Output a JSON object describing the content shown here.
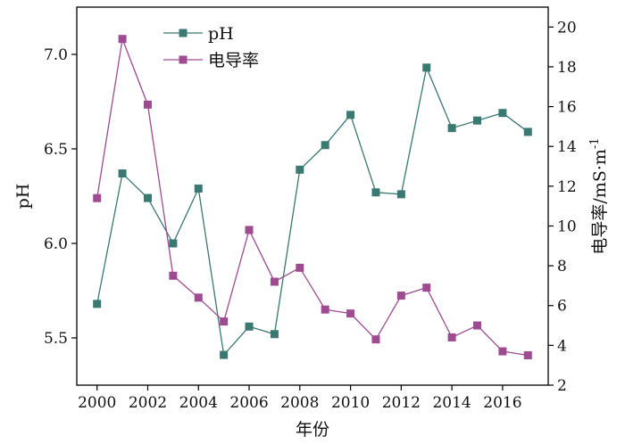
{
  "chart_data": {
    "type": "line",
    "xlabel": "年份",
    "ylabel_left": "pH",
    "ylabel_right": "电导率/mS·m",
    "ylabel_right_superscript": "-1",
    "x": [
      2000,
      2001,
      2002,
      2003,
      2004,
      2005,
      2006,
      2007,
      2008,
      2009,
      2010,
      2011,
      2012,
      2013,
      2014,
      2015,
      2016,
      2017
    ],
    "xlim": [
      1999.2,
      2017.8
    ],
    "xticks": [
      2000,
      2002,
      2004,
      2006,
      2008,
      2010,
      2012,
      2014,
      2016
    ],
    "ylim_left": [
      5.25,
      7.25
    ],
    "yticks_left": [
      "5.5",
      "6.0",
      "6.5",
      "7.0"
    ],
    "ylim_right": [
      2,
      21
    ],
    "yticks_right": [
      2,
      4,
      6,
      8,
      10,
      12,
      14,
      16,
      18,
      20
    ],
    "legend_position": "top-left",
    "grid": false,
    "series": [
      {
        "name": "pH",
        "axis": "left",
        "color": "#3a7872",
        "marker": "square",
        "values": [
          5.68,
          6.37,
          6.24,
          6.0,
          6.29,
          5.41,
          5.56,
          5.52,
          6.39,
          6.52,
          6.68,
          6.27,
          6.26,
          6.93,
          6.61,
          6.65,
          6.69,
          6.59
        ]
      },
      {
        "name": "电导率",
        "axis": "right",
        "color": "#9e4b92",
        "marker": "square",
        "values": [
          11.4,
          19.4,
          16.1,
          7.5,
          6.4,
          5.2,
          9.8,
          7.2,
          7.9,
          5.8,
          5.6,
          4.3,
          6.5,
          6.9,
          4.4,
          5.0,
          3.7,
          3.5
        ]
      }
    ]
  }
}
